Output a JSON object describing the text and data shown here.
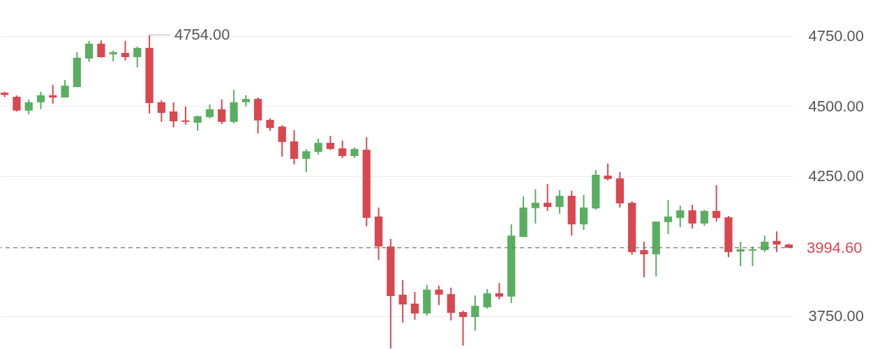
{
  "chart_data": {
    "type": "candlestick",
    "categories": [
      null,
      null,
      null,
      null,
      null,
      null,
      null,
      null,
      null,
      null,
      null,
      null,
      null,
      null,
      null,
      null,
      null,
      null,
      null,
      null,
      null,
      null,
      null,
      null,
      null,
      null,
      null,
      null,
      null,
      null,
      null,
      null,
      null,
      null,
      null,
      null,
      null,
      null,
      null,
      null,
      null,
      null,
      null,
      null,
      null,
      null,
      null,
      null,
      null,
      null,
      null,
      null,
      null,
      null,
      null,
      null,
      null,
      null,
      null,
      null,
      null,
      null,
      null,
      null,
      null,
      null
    ],
    "ohlc": [
      [
        4548,
        4551,
        4532,
        4540
      ],
      [
        4533,
        4538,
        4481,
        4484
      ],
      [
        4484,
        4524,
        4471,
        4514
      ],
      [
        4514,
        4551,
        4489,
        4539
      ],
      [
        4539,
        4576,
        4509,
        4531
      ],
      [
        4531,
        4593,
        4531,
        4573
      ],
      [
        4568,
        4693,
        4568,
        4673
      ],
      [
        4670,
        4733,
        4658,
        4723
      ],
      [
        4723,
        4735,
        4673,
        4675
      ],
      [
        4685,
        4698,
        4660,
        4693
      ],
      [
        4690,
        4733,
        4663,
        4675
      ],
      [
        4675,
        4713,
        4638,
        4708
      ],
      [
        4708,
        4754,
        4474,
        4511
      ],
      [
        4514,
        4521,
        4444,
        4476
      ],
      [
        4481,
        4514,
        4424,
        4446
      ],
      [
        4449,
        4499,
        4434,
        4444
      ],
      [
        4441,
        4466,
        4412,
        4464
      ],
      [
        4461,
        4506,
        4456,
        4489
      ],
      [
        4489,
        4524,
        4436,
        4444
      ],
      [
        4444,
        4558,
        4439,
        4514
      ],
      [
        4514,
        4539,
        4499,
        4526
      ],
      [
        4526,
        4531,
        4402,
        4449
      ],
      [
        4451,
        4456,
        4412,
        4422
      ],
      [
        4427,
        4432,
        4320,
        4372
      ],
      [
        4374,
        4414,
        4292,
        4312
      ],
      [
        4312,
        4347,
        4265,
        4339
      ],
      [
        4337,
        4384,
        4327,
        4369
      ],
      [
        4369,
        4394,
        4344,
        4347
      ],
      [
        4349,
        4377,
        4315,
        4322
      ],
      [
        4322,
        4352,
        4315,
        4347
      ],
      [
        4344,
        4389,
        4071,
        4101
      ],
      [
        4106,
        4138,
        3951,
        3999
      ],
      [
        3999,
        4026,
        3635,
        3822
      ],
      [
        3827,
        3879,
        3727,
        3792
      ],
      [
        3795,
        3837,
        3737,
        3760
      ],
      [
        3760,
        3862,
        3752,
        3845
      ],
      [
        3845,
        3859,
        3790,
        3827
      ],
      [
        3829,
        3852,
        3735,
        3762
      ],
      [
        3765,
        3770,
        3645,
        3747
      ],
      [
        3747,
        3824,
        3698,
        3787
      ],
      [
        3782,
        3847,
        3777,
        3832
      ],
      [
        3832,
        3869,
        3810,
        3820
      ],
      [
        3820,
        4078,
        3797,
        4038
      ],
      [
        4033,
        4178,
        4033,
        4138
      ],
      [
        4136,
        4203,
        4081,
        4155
      ],
      [
        4155,
        4222,
        4126,
        4140
      ],
      [
        4140,
        4200,
        4116,
        4180
      ],
      [
        4180,
        4198,
        4038,
        4078
      ],
      [
        4078,
        4183,
        4058,
        4138
      ],
      [
        4135,
        4272,
        4130,
        4255
      ],
      [
        4252,
        4295,
        4235,
        4240
      ],
      [
        4242,
        4265,
        4138,
        4153
      ],
      [
        4155,
        4160,
        3969,
        3979
      ],
      [
        3986,
        4016,
        3889,
        3971
      ],
      [
        3971,
        4088,
        3892,
        4088
      ],
      [
        4086,
        4165,
        4043,
        4106
      ],
      [
        4101,
        4145,
        4068,
        4128
      ],
      [
        4128,
        4148,
        4063,
        4081
      ],
      [
        4081,
        4130,
        4073,
        4126
      ],
      [
        4126,
        4218,
        4088,
        4101
      ],
      [
        4103,
        4108,
        3961,
        3979
      ],
      [
        3981,
        4016,
        3929,
        3989
      ],
      [
        3984,
        3999,
        3929,
        3989
      ],
      [
        3986,
        4038,
        3979,
        4016
      ],
      [
        4019,
        4053,
        3979,
        4006
      ],
      [
        4006,
        4009,
        3994,
        3994.6
      ]
    ],
    "colors": [
      "#d9474f",
      "#d9474f",
      "#5aae61",
      "#5aae61",
      "#d9474f",
      "#5aae61",
      "#5aae61",
      "#5aae61",
      "#d9474f",
      "#5aae61",
      "#d9474f",
      "#5aae61",
      "#d9474f",
      "#d9474f",
      "#d9474f",
      "#d9474f",
      "#5aae61",
      "#5aae61",
      "#d9474f",
      "#5aae61",
      "#5aae61",
      "#d9474f",
      "#d9474f",
      "#d9474f",
      "#d9474f",
      "#5aae61",
      "#5aae61",
      "#d9474f",
      "#d9474f",
      "#5aae61",
      "#d9474f",
      "#d9474f",
      "#d9474f",
      "#d9474f",
      "#d9474f",
      "#5aae61",
      "#d9474f",
      "#d9474f",
      "#d9474f",
      "#5aae61",
      "#5aae61",
      "#d9474f",
      "#5aae61",
      "#5aae61",
      "#5aae61",
      "#d9474f",
      "#5aae61",
      "#d9474f",
      "#5aae61",
      "#5aae61",
      "#d9474f",
      "#d9474f",
      "#d9474f",
      "#d9474f",
      "#5aae61",
      "#5aae61",
      "#5aae61",
      "#d9474f",
      "#5aae61",
      "#d9474f",
      "#d9474f",
      "#5aae61",
      "#5aae61",
      "#5aae61",
      "#d9474f",
      "#d9474f"
    ],
    "ylim": [
      3633,
      4879
    ],
    "yticks": [
      {
        "value": 3750,
        "label": "3750.00"
      },
      {
        "value": 4250,
        "label": "4250.00"
      },
      {
        "value": 4500,
        "label": "4500.00"
      },
      {
        "value": 4750,
        "label": "4750.00"
      }
    ],
    "grid": "y",
    "tick_labels": "y",
    "ref_lines": [
      {
        "axis": "y",
        "value": 3994.6,
        "label": "3994.60",
        "color": "#777777",
        "line_style": "dashed"
      }
    ],
    "annotations": [
      "4754.00"
    ]
  }
}
